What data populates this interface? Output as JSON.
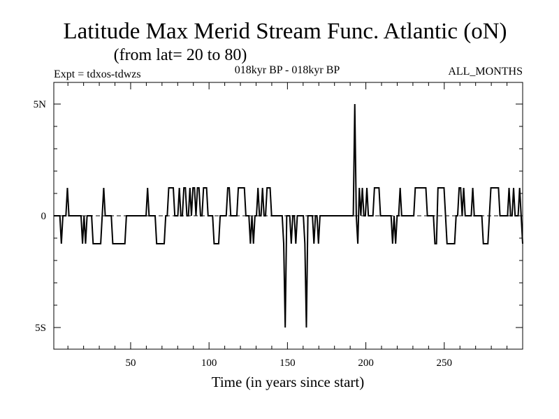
{
  "chart_data": {
    "type": "line",
    "title": "Latitude Max Merid Stream Func. Atlantic (oN)",
    "subtitle": "(from lat= 20 to 80)",
    "header_left": "Expt = tdxos-tdwzs",
    "header_center": "018kyr BP - 018kyr BP",
    "header_right": "ALL_MONTHS",
    "xlabel": "Time (in years since start)",
    "ylabel": "",
    "xlim": [
      1,
      300
    ],
    "ylim": [
      -6,
      6
    ],
    "x_ticks": [
      {
        "value": 50,
        "label": "50"
      },
      {
        "value": 100,
        "label": "100"
      },
      {
        "value": 150,
        "label": "150"
      },
      {
        "value": 200,
        "label": "200"
      },
      {
        "value": 250,
        "label": "250"
      }
    ],
    "y_ticks": [
      {
        "value": 5,
        "label": "5N"
      },
      {
        "value": 0,
        "label": "0"
      },
      {
        "value": -5,
        "label": "5S"
      }
    ],
    "grid": false,
    "series": [
      {
        "values": [
          0,
          0,
          0,
          0,
          0,
          -1.25,
          0,
          0,
          0,
          1.25,
          0,
          0,
          0,
          0,
          0,
          0,
          0,
          0,
          0,
          -1.25,
          0,
          -1.25,
          0,
          0,
          0,
          0,
          -1.25,
          -1.25,
          -1.25,
          -1.25,
          -1.25,
          -1.25,
          0,
          1.25,
          0,
          0,
          0,
          0,
          0,
          -1.25,
          -1.25,
          -1.25,
          -1.25,
          -1.25,
          -1.25,
          -1.25,
          -1.25,
          -1.25,
          0,
          0,
          0,
          0,
          0,
          0,
          0,
          0,
          0,
          0,
          0,
          0,
          0,
          0,
          1.25,
          0,
          0,
          0,
          0,
          0,
          -1.25,
          -1.25,
          -1.25,
          -1.25,
          -1.25,
          -1.25,
          0,
          0,
          1.25,
          1.25,
          1.25,
          1.25,
          0,
          0,
          0,
          1.25,
          0,
          0,
          1.25,
          1.25,
          0,
          0,
          1.25,
          0,
          1.25,
          1.25,
          0,
          1.25,
          1.25,
          0,
          0,
          1.25,
          1.25,
          1.25,
          0,
          0,
          0,
          0,
          -1.25,
          -1.25,
          -1.25,
          -1.25,
          0,
          0,
          0,
          0,
          0,
          1.25,
          1.25,
          0,
          0,
          0,
          0,
          0,
          1.25,
          1.25,
          1.25,
          1.25,
          1.25,
          0,
          0,
          0,
          -1.25,
          0,
          -1.25,
          0,
          0,
          1.25,
          0,
          0,
          1.25,
          0,
          0,
          1.25,
          1.25,
          1.25,
          0,
          0,
          0,
          0,
          0,
          0,
          0,
          0,
          -1.25,
          -5,
          0,
          0,
          0,
          -1.25,
          0,
          0,
          -1.25,
          0,
          0,
          0,
          0,
          0,
          -1.25,
          -5,
          0,
          0,
          0,
          0,
          -1.25,
          0,
          0,
          -1.25,
          0,
          0,
          0,
          0,
          0,
          0,
          0,
          0,
          0,
          0,
          0,
          0,
          0,
          0,
          0,
          0,
          0,
          0,
          0,
          0,
          0,
          0,
          0,
          5,
          0,
          -1.25,
          1.25,
          0,
          1.25,
          0,
          0,
          1.25,
          0,
          0,
          0,
          0,
          1.25,
          1.25,
          1.25,
          1.25,
          0,
          0,
          0,
          0,
          0,
          0,
          0,
          0,
          -1.25,
          0,
          -1.25,
          0,
          0,
          1.25,
          0,
          0,
          0,
          0,
          0,
          0,
          0,
          0,
          0,
          1.25,
          1.25,
          1.25,
          1.25,
          1.25,
          1.25,
          1.25,
          1.25,
          0,
          0,
          0,
          0,
          0,
          -1.25,
          -1.25,
          1.25,
          1.25,
          1.25,
          1.25,
          1.25,
          0,
          -1.25,
          -1.25,
          -1.25,
          -1.25,
          -1.25,
          -1.25,
          0,
          0,
          1.25,
          1.25,
          0,
          1.25,
          0,
          0,
          0,
          0,
          0,
          1.25,
          0,
          0,
          0,
          0,
          0,
          0,
          -1.25,
          -1.25,
          -1.25,
          -1.25,
          0,
          1.25,
          1.25,
          1.25,
          1.25,
          1.25,
          1.25,
          0,
          0,
          0,
          0,
          0,
          0,
          1.25,
          0,
          0,
          1.25,
          0,
          0,
          0,
          1.25,
          0,
          -1.25
        ]
      }
    ]
  }
}
